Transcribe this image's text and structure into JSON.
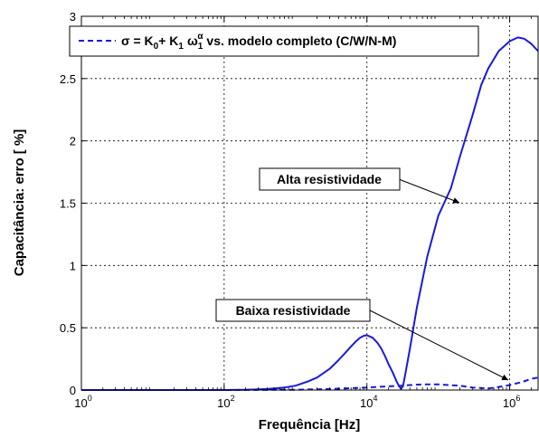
{
  "chart_data": {
    "type": "line",
    "xscale": "log",
    "xlim": [
      1,
      2500000
    ],
    "ylim": [
      0,
      3
    ],
    "xlabel": "Frequência [Hz]",
    "ylabel": "Capacitância: erro [ %]",
    "grid": true,
    "x_ticks": [
      {
        "base": "10",
        "exp": "0",
        "value": 1
      },
      {
        "base": "10",
        "exp": "2",
        "value": 100
      },
      {
        "base": "10",
        "exp": "4",
        "value": 10000
      },
      {
        "base": "10",
        "exp": "6",
        "value": 1000000
      }
    ],
    "y_ticks": [
      {
        "label": "0",
        "value": 0
      },
      {
        "label": "0.5",
        "value": 0.5
      },
      {
        "label": "1",
        "value": 1
      },
      {
        "label": "1.5",
        "value": 1.5
      },
      {
        "label": "2",
        "value": 2
      },
      {
        "label": "2.5",
        "value": 2.5
      },
      {
        "label": "3",
        "value": 3
      }
    ],
    "legend": {
      "location": "top-left",
      "prefix": "σ = K",
      "sub0": "0",
      "mid": "+ K",
      "sub1": "1",
      "omega": "ω",
      "omega_sub": "1",
      "omega_sup": "α",
      "suffix": " vs. modelo completo (C/W/N-M)"
    },
    "series": [
      {
        "style": "solid",
        "color": "#1a1adc",
        "x": [
          1,
          10,
          100,
          200,
          400,
          700,
          1000,
          1500,
          2000,
          3000,
          4000,
          5000,
          6000,
          7000,
          8000,
          9000,
          10000,
          12000,
          14000,
          16000,
          18000,
          20000,
          23000,
          26000,
          28000,
          30000,
          32000,
          35000,
          40000,
          50000,
          70000,
          100000,
          150000,
          200000,
          300000,
          400000,
          500000,
          700000,
          1000000,
          1300000,
          1600000,
          2000000,
          2500000
        ],
        "y": [
          0,
          0,
          0,
          0.002,
          0.008,
          0.02,
          0.035,
          0.07,
          0.1,
          0.17,
          0.24,
          0.3,
          0.35,
          0.39,
          0.42,
          0.435,
          0.44,
          0.42,
          0.38,
          0.33,
          0.27,
          0.21,
          0.14,
          0.07,
          0.035,
          0.01,
          0.03,
          0.15,
          0.33,
          0.66,
          1.07,
          1.4,
          1.62,
          1.87,
          2.2,
          2.45,
          2.58,
          2.72,
          2.8,
          2.83,
          2.82,
          2.78,
          2.72
        ]
      },
      {
        "style": "dashed",
        "color": "#1a1adc",
        "x": [
          1,
          100,
          1000,
          3000,
          10000,
          20000,
          30000,
          40000,
          60000,
          100000,
          200000,
          300000,
          500000,
          700000,
          1000000,
          1500000,
          2000000,
          2500000
        ],
        "y": [
          0,
          0,
          0.002,
          0.008,
          0.02,
          0.03,
          0.035,
          0.04,
          0.045,
          0.045,
          0.035,
          0.02,
          0.012,
          0.025,
          0.04,
          0.065,
          0.09,
          0.1
        ]
      }
    ],
    "annotations": [
      {
        "text": "Alta resistividade",
        "target": {
          "x": 150000,
          "y": 1.5
        }
      },
      {
        "text": "Baixa resistividade",
        "target": {
          "x": 1000000,
          "y": 0.09
        }
      }
    ]
  }
}
